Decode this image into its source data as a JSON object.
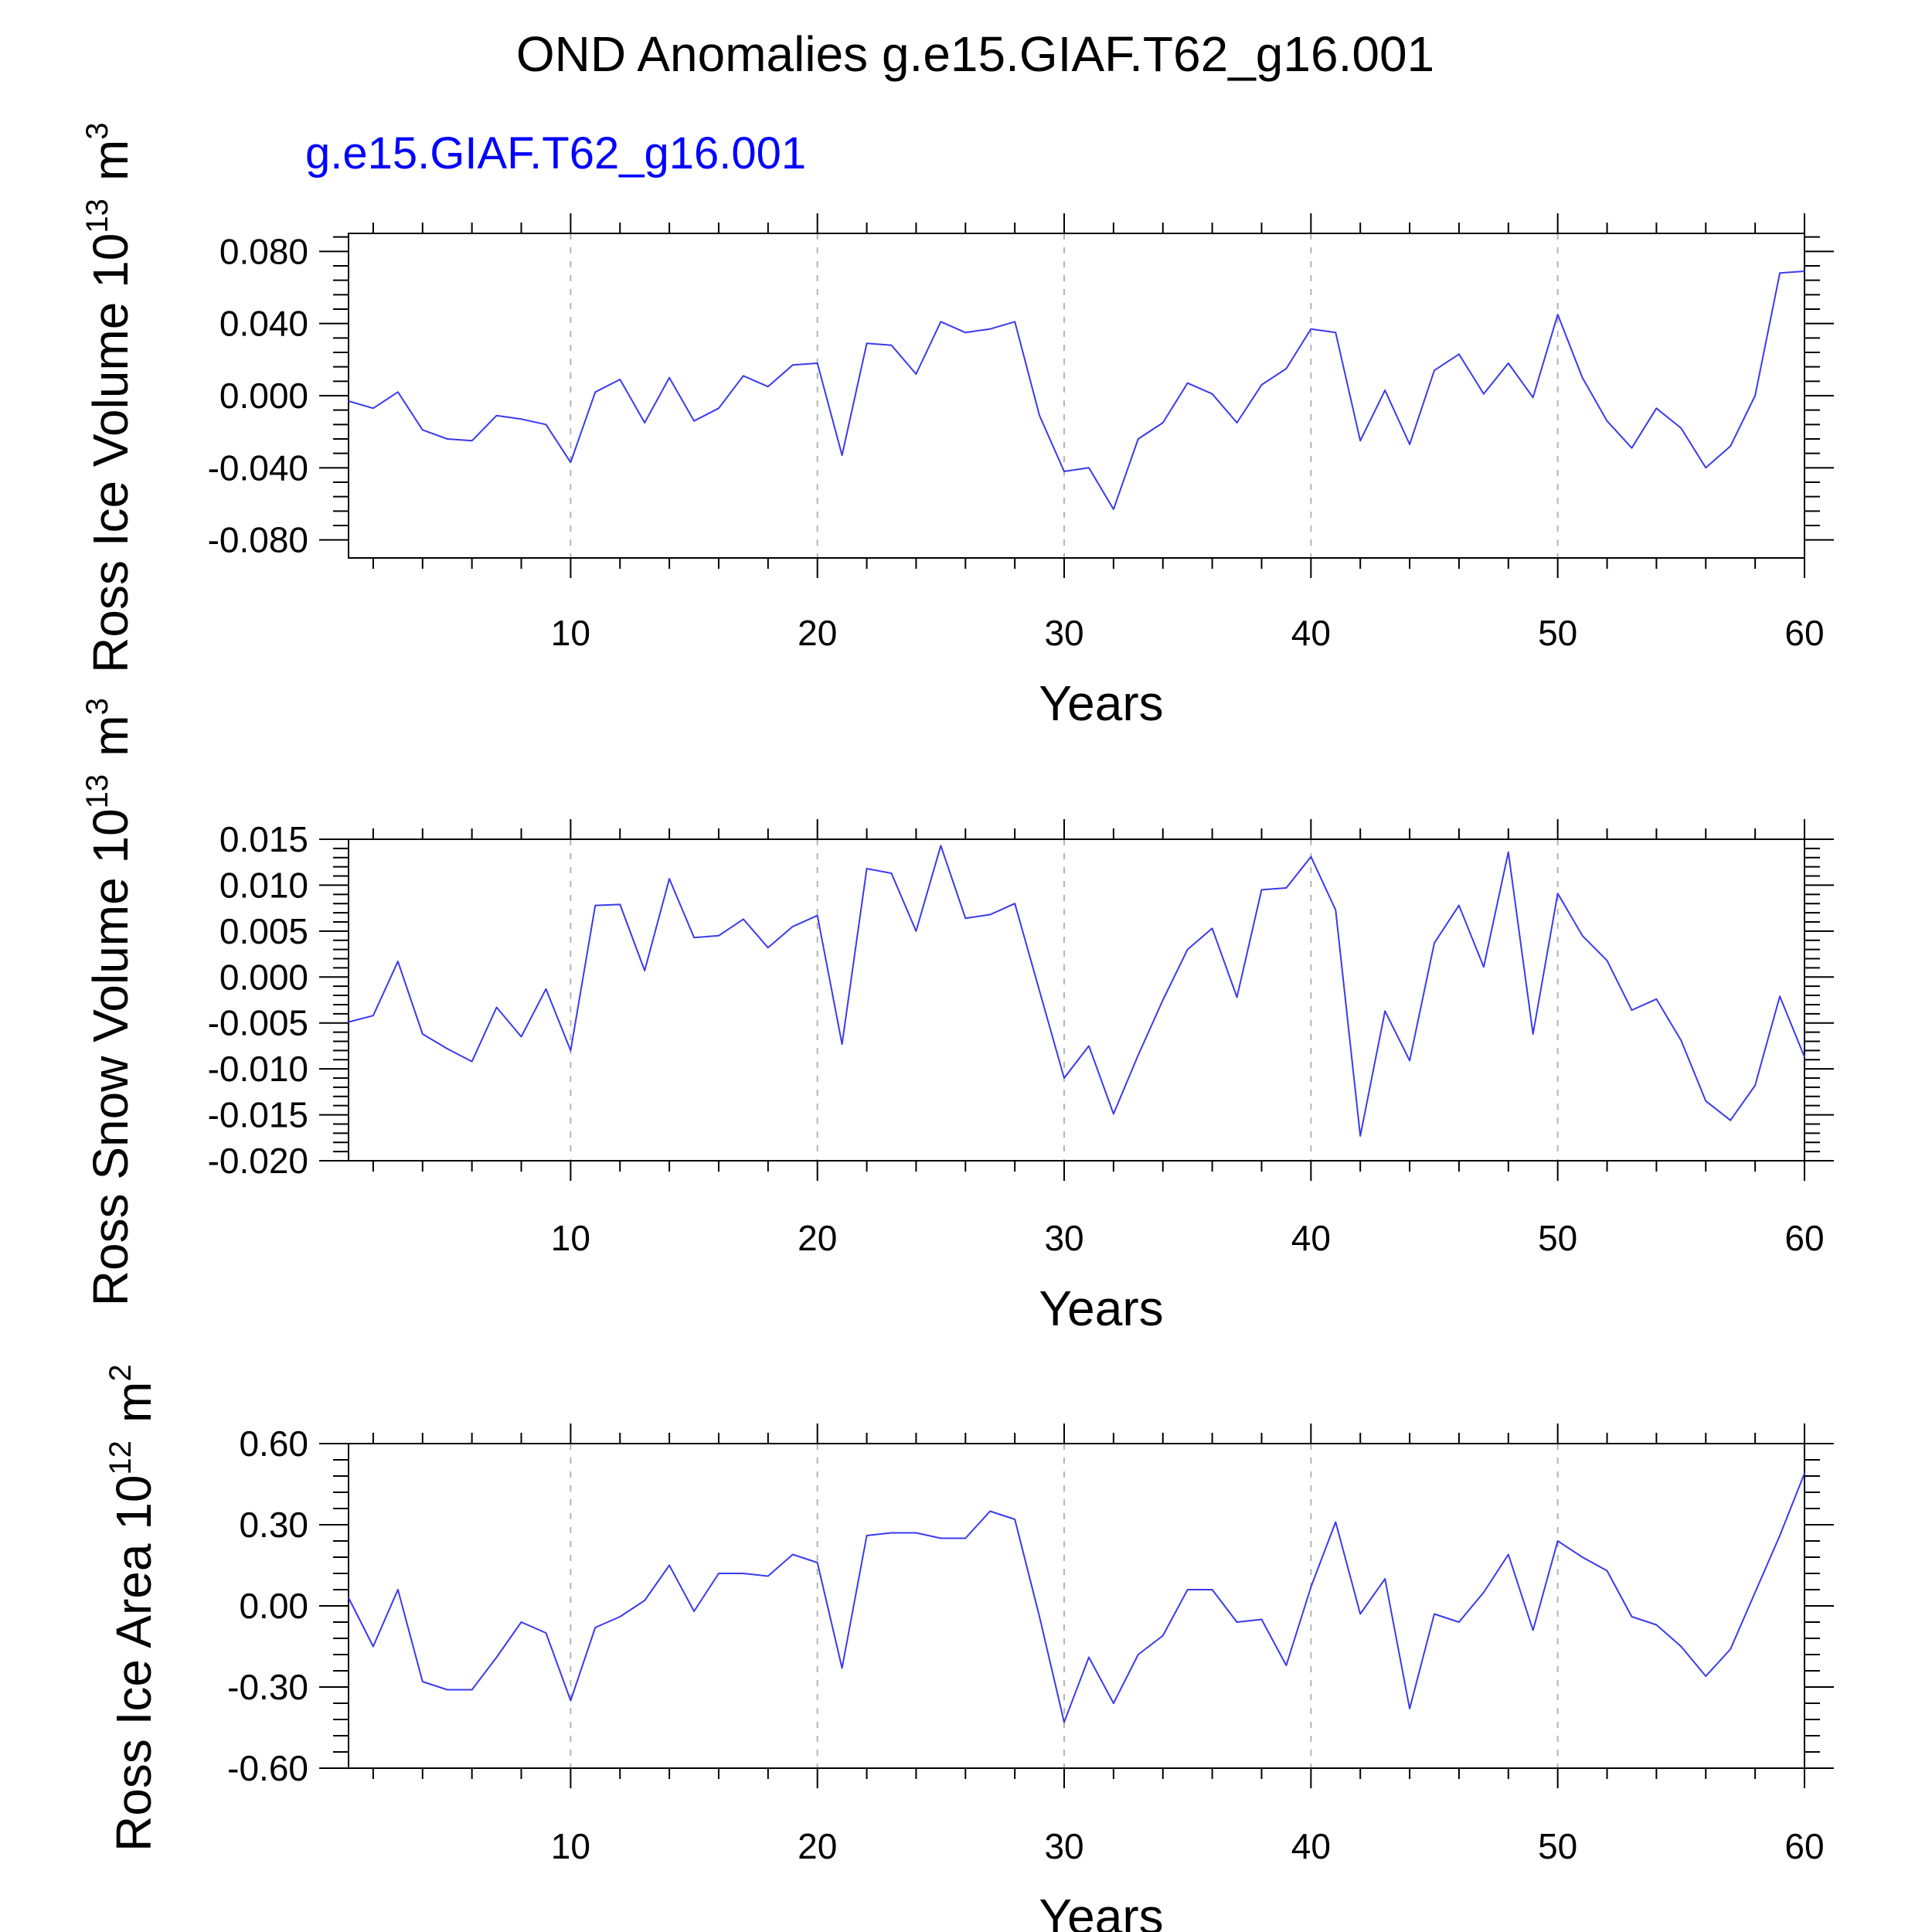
{
  "figure": {
    "title": "OND Anomalies g.e15.GIAF.T62_g16.001",
    "case_label": "g.e15.GIAF.T62_g16.001",
    "case_color": "#0000ff",
    "line_color": "#3a3af0"
  },
  "chart_data": [
    {
      "type": "line",
      "title": "",
      "xlabel": "Years",
      "ylabel_main": "Ross Ice Volume 10",
      "ylabel_exp": "13",
      "ylabel_unit": "m",
      "ylabel_unit_exp": "3",
      "xlim": [
        1,
        60
      ],
      "ylim": [
        -0.09,
        0.09
      ],
      "xticks": [
        10,
        20,
        30,
        40,
        50,
        60
      ],
      "yticks": [
        -0.08,
        -0.04,
        0.0,
        0.04,
        0.08
      ],
      "ytick_labels": [
        "-0.080",
        "-0.040",
        "0.000",
        "0.040",
        "0.080"
      ],
      "grid": "x-major-dashed",
      "series": [
        {
          "x": [
            1,
            2,
            3,
            4,
            5,
            6,
            7,
            8,
            9,
            10,
            11,
            12,
            13,
            14,
            15,
            16,
            17,
            18,
            19,
            20,
            21,
            22,
            23,
            24,
            25,
            26,
            27,
            28,
            29,
            30,
            31,
            32,
            33,
            34,
            35,
            36,
            37,
            38,
            39,
            40,
            41,
            42,
            43,
            44,
            45,
            46,
            47,
            48,
            49,
            50,
            51,
            52,
            53,
            54,
            55,
            56,
            57,
            58,
            59,
            60
          ],
          "values": [
            -0.003,
            -0.007,
            0.002,
            -0.019,
            -0.024,
            -0.025,
            -0.011,
            -0.013,
            -0.016,
            -0.037,
            0.002,
            0.009,
            -0.015,
            0.01,
            -0.014,
            -0.007,
            0.011,
            0.005,
            0.017,
            0.018,
            -0.033,
            0.029,
            0.028,
            0.012,
            0.041,
            0.035,
            0.037,
            0.041,
            -0.011,
            -0.042,
            -0.04,
            -0.063,
            -0.024,
            -0.015,
            0.007,
            0.001,
            -0.015,
            0.006,
            0.015,
            0.037,
            0.035,
            -0.025,
            0.003,
            -0.027,
            0.014,
            0.023,
            0.001,
            0.018,
            -0.001,
            0.045,
            0.01,
            -0.014,
            -0.029,
            -0.007,
            -0.018,
            -0.04,
            -0.028,
            0.0,
            0.068,
            0.069
          ]
        }
      ]
    },
    {
      "type": "line",
      "title": "",
      "xlabel": "Years",
      "ylabel_main": "Ross Snow Volume 10",
      "ylabel_exp": "13",
      "ylabel_unit": "m",
      "ylabel_unit_exp": "3",
      "xlim": [
        1,
        60
      ],
      "ylim": [
        -0.02,
        0.015
      ],
      "xticks": [
        10,
        20,
        30,
        40,
        50,
        60
      ],
      "yticks": [
        -0.02,
        -0.015,
        -0.01,
        -0.005,
        0.0,
        0.005,
        0.01,
        0.015
      ],
      "ytick_labels": [
        "-0.020",
        "-0.015",
        "-0.010",
        "-0.005",
        "0.000",
        "0.005",
        "0.010",
        "0.015"
      ],
      "grid": "x-major-dashed",
      "series": [
        {
          "x": [
            1,
            2,
            3,
            4,
            5,
            6,
            7,
            8,
            9,
            10,
            11,
            12,
            13,
            14,
            15,
            16,
            17,
            18,
            19,
            20,
            21,
            22,
            23,
            24,
            25,
            26,
            27,
            28,
            29,
            30,
            31,
            32,
            33,
            34,
            35,
            36,
            37,
            38,
            39,
            40,
            41,
            42,
            43,
            44,
            45,
            46,
            47,
            48,
            49,
            50,
            51,
            52,
            53,
            54,
            55,
            56,
            57,
            58,
            59,
            60
          ],
          "values": [
            -0.0049,
            -0.0042,
            0.0017,
            -0.0062,
            -0.0078,
            -0.0092,
            -0.0033,
            -0.0065,
            -0.0013,
            -0.008,
            0.0078,
            0.0079,
            0.0007,
            0.0107,
            0.0043,
            0.0045,
            0.0063,
            0.0032,
            0.0055,
            0.0067,
            -0.0073,
            0.0118,
            0.0113,
            0.005,
            0.0143,
            0.0064,
            0.0068,
            0.008,
            -0.0015,
            -0.011,
            -0.0075,
            -0.0149,
            -0.0085,
            -0.0025,
            0.003,
            0.0053,
            -0.0022,
            0.0095,
            0.0097,
            0.0131,
            0.0073,
            -0.0173,
            -0.0037,
            -0.0091,
            0.0037,
            0.0078,
            0.0011,
            0.0136,
            -0.0062,
            0.0091,
            0.0045,
            0.0018,
            -0.0036,
            -0.0024,
            -0.0069,
            -0.0135,
            -0.0156,
            -0.0118,
            -0.0021,
            -0.0087
          ]
        }
      ]
    },
    {
      "type": "line",
      "title": "",
      "xlabel": "Years",
      "ylabel_main": "Ross Ice Area 10",
      "ylabel_exp": "12",
      "ylabel_unit": "m",
      "ylabel_unit_exp": "2",
      "xlim": [
        1,
        60
      ],
      "ylim": [
        -0.6,
        0.6
      ],
      "xticks": [
        10,
        20,
        30,
        40,
        50,
        60
      ],
      "yticks": [
        -0.6,
        -0.3,
        0.0,
        0.3,
        0.6
      ],
      "ytick_labels": [
        "-0.60",
        "-0.30",
        "0.00",
        "0.30",
        "0.60"
      ],
      "grid": "x-major-dashed",
      "series": [
        {
          "x": [
            1,
            2,
            3,
            4,
            5,
            6,
            7,
            8,
            9,
            10,
            11,
            12,
            13,
            14,
            15,
            16,
            17,
            18,
            19,
            20,
            21,
            22,
            23,
            24,
            25,
            26,
            27,
            28,
            29,
            30,
            31,
            32,
            33,
            34,
            35,
            36,
            37,
            38,
            39,
            40,
            41,
            42,
            43,
            44,
            45,
            46,
            47,
            48,
            49,
            50,
            51,
            52,
            53,
            54,
            55,
            56,
            57,
            58,
            59,
            60
          ],
          "values": [
            0.03,
            -0.15,
            0.06,
            -0.28,
            -0.31,
            -0.31,
            -0.19,
            -0.06,
            -0.1,
            -0.35,
            -0.08,
            -0.04,
            0.02,
            0.15,
            -0.02,
            0.12,
            0.12,
            0.11,
            0.19,
            0.16,
            -0.23,
            0.26,
            0.27,
            0.27,
            0.25,
            0.25,
            0.35,
            0.32,
            -0.04,
            -0.43,
            -0.19,
            -0.36,
            -0.18,
            -0.11,
            0.06,
            0.06,
            -0.06,
            -0.05,
            -0.22,
            0.07,
            0.31,
            -0.03,
            0.1,
            -0.38,
            -0.03,
            -0.06,
            0.05,
            0.19,
            -0.09,
            0.24,
            0.18,
            0.13,
            -0.04,
            -0.07,
            -0.15,
            -0.26,
            -0.16,
            0.05,
            0.26,
            0.49
          ]
        }
      ]
    }
  ]
}
